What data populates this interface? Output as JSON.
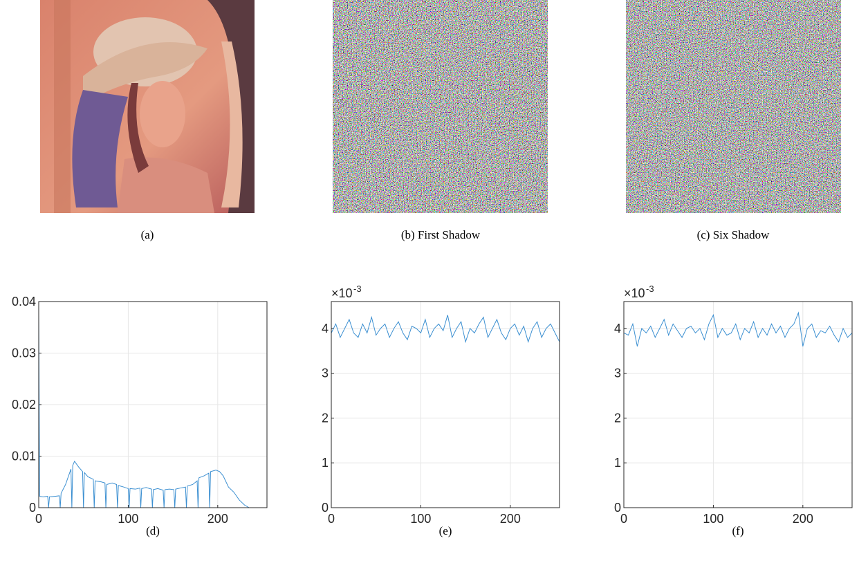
{
  "figure": {
    "panels": [
      {
        "caption": "(a)"
      },
      {
        "caption": "(b) First Shadow"
      },
      {
        "caption": "(c) Six Shadow"
      }
    ]
  },
  "chart_data": [
    {
      "type": "line",
      "caption": "(d)",
      "x": [
        0,
        1,
        5,
        10,
        11,
        12,
        18,
        23,
        24,
        25,
        30,
        36,
        37,
        38,
        40,
        45,
        49,
        50,
        51,
        55,
        61,
        62,
        63,
        70,
        74,
        75,
        76,
        82,
        87,
        88,
        89,
        95,
        100,
        101,
        102,
        108,
        113,
        114,
        115,
        120,
        126,
        127,
        128,
        133,
        139,
        140,
        141,
        146,
        151,
        152,
        153,
        158,
        164,
        165,
        166,
        172,
        177,
        178,
        179,
        185,
        190,
        191,
        192,
        198,
        202,
        206,
        212,
        218,
        224,
        230,
        235,
        255
      ],
      "series": [
        {
          "color": "#3b8fd1",
          "values": [
            0.038,
            0.0022,
            0.0021,
            0.0022,
            0,
            0.0021,
            0.0022,
            0.0023,
            0,
            0.0028,
            0.0045,
            0.0075,
            0,
            0.0082,
            0.009,
            0.0078,
            0.007,
            0,
            0.0068,
            0.006,
            0.0055,
            0,
            0.0052,
            0.005,
            0.0048,
            0,
            0.0045,
            0.0048,
            0.0045,
            0,
            0.0043,
            0.004,
            0.0037,
            0,
            0.0037,
            0.0036,
            0.0038,
            0,
            0.0037,
            0.0039,
            0.0036,
            0,
            0.0035,
            0.0037,
            0.0034,
            0,
            0.0035,
            0.0036,
            0.0035,
            0,
            0.0036,
            0.0038,
            0.004,
            0,
            0.0042,
            0.0045,
            0.0052,
            0,
            0.0058,
            0.0062,
            0.0067,
            0,
            0.007,
            0.0073,
            0.007,
            0.0062,
            0.004,
            0.003,
            0.0015,
            0.0005,
            0,
            0
          ]
        }
      ],
      "xlim": [
        0,
        255
      ],
      "ylim": [
        0,
        0.04
      ],
      "xticks": [
        0,
        100,
        200
      ],
      "yticks": [
        0,
        0.01,
        0.02,
        0.03,
        0.04
      ],
      "grid": true
    },
    {
      "type": "line",
      "caption": "(e)",
      "y_multiplier_base": "×10",
      "y_multiplier_exponent": "-3",
      "x": [
        0,
        5,
        10,
        15,
        20,
        25,
        30,
        35,
        40,
        45,
        50,
        55,
        60,
        65,
        70,
        75,
        80,
        85,
        90,
        95,
        100,
        105,
        110,
        115,
        120,
        125,
        130,
        135,
        140,
        145,
        150,
        155,
        160,
        165,
        170,
        175,
        180,
        185,
        190,
        195,
        200,
        205,
        210,
        215,
        220,
        225,
        230,
        235,
        240,
        245,
        250,
        255
      ],
      "series": [
        {
          "color": "#3b8fd1",
          "values": [
            3.9,
            4.1,
            3.8,
            4.0,
            4.2,
            3.9,
            3.8,
            4.1,
            3.9,
            4.25,
            3.85,
            4.0,
            4.1,
            3.8,
            4.0,
            4.15,
            3.9,
            3.75,
            4.05,
            4.0,
            3.9,
            4.2,
            3.8,
            4.0,
            4.1,
            3.95,
            4.3,
            3.8,
            4.0,
            4.15,
            3.7,
            4.0,
            3.9,
            4.1,
            4.25,
            3.8,
            4.0,
            4.2,
            3.9,
            3.75,
            4.0,
            4.1,
            3.85,
            4.05,
            3.7,
            4.0,
            4.15,
            3.8,
            4.0,
            4.1,
            3.9,
            3.7
          ]
        }
      ],
      "xlim": [
        0,
        255
      ],
      "ylim": [
        0,
        4.6
      ],
      "xticks": [
        0,
        100,
        200
      ],
      "yticks": [
        0,
        1,
        2,
        3,
        4
      ],
      "grid": true
    },
    {
      "type": "line",
      "caption": "(f)",
      "y_multiplier_base": "×10",
      "y_multiplier_exponent": "-3",
      "x": [
        0,
        5,
        10,
        15,
        20,
        25,
        30,
        35,
        40,
        45,
        50,
        55,
        60,
        65,
        70,
        75,
        80,
        85,
        90,
        95,
        100,
        105,
        110,
        115,
        120,
        125,
        130,
        135,
        140,
        145,
        150,
        155,
        160,
        165,
        170,
        175,
        180,
        185,
        190,
        195,
        200,
        205,
        210,
        215,
        220,
        225,
        230,
        235,
        240,
        245,
        250,
        255
      ],
      "series": [
        {
          "color": "#3b8fd1",
          "values": [
            3.9,
            3.85,
            4.1,
            3.6,
            4.0,
            3.9,
            4.05,
            3.8,
            4.0,
            4.2,
            3.85,
            4.1,
            3.95,
            3.8,
            4.0,
            4.05,
            3.9,
            4.0,
            3.75,
            4.1,
            4.3,
            3.8,
            4.0,
            3.85,
            3.9,
            4.1,
            3.75,
            4.0,
            3.9,
            4.15,
            3.8,
            4.0,
            3.85,
            4.1,
            3.9,
            4.05,
            3.8,
            4.0,
            4.1,
            4.35,
            3.6,
            4.0,
            4.1,
            3.8,
            3.95,
            3.9,
            4.05,
            3.85,
            3.7,
            4.0,
            3.8,
            3.9
          ]
        }
      ],
      "xlim": [
        0,
        255
      ],
      "ylim": [
        0,
        4.6
      ],
      "xticks": [
        0,
        100,
        200
      ],
      "yticks": [
        0,
        1,
        2,
        3,
        4
      ],
      "grid": true
    }
  ]
}
